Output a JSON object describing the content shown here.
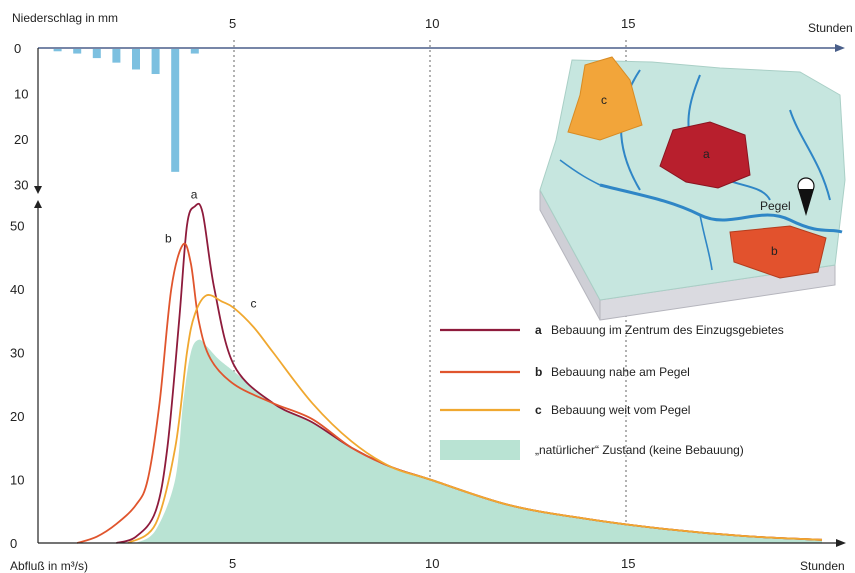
{
  "chart_data": {
    "type": "area",
    "top_axis": {
      "label": "Niederschlag in mm",
      "unit_label": "Stunden",
      "ticks": [
        0,
        10,
        20,
        30
      ],
      "x_ticks": [
        5,
        10,
        15
      ]
    },
    "precipitation": {
      "x": [
        0.5,
        1.0,
        1.5,
        2.0,
        2.5,
        3.0,
        3.5,
        4.0
      ],
      "values": [
        0.5,
        1,
        2,
        3,
        4.5,
        5.5,
        27,
        1
      ]
    },
    "bottom_axis": {
      "ylabel": "Abfluß in m³/s)",
      "xlabel": "Stunden",
      "y_ticks": [
        0,
        10,
        20,
        30,
        40,
        50
      ],
      "x_ticks": [
        5,
        10,
        15
      ],
      "xlim": [
        0,
        20
      ],
      "ylim": [
        0,
        56
      ]
    },
    "series": [
      {
        "key": "a",
        "name": "Bebauung im Zentrum des Einzugsgebietes",
        "color": "#8e1b3c",
        "x": [
          2.0,
          2.5,
          3.0,
          3.3,
          3.6,
          3.8,
          4.0,
          4.2,
          4.5,
          5.0,
          6.0,
          7.0,
          8.0,
          9.0,
          10.0,
          12.0,
          14.0,
          16.0,
          18.0,
          20.0
        ],
        "y": [
          0,
          1,
          5,
          15,
          35,
          50,
          53,
          52,
          40,
          28,
          22,
          19,
          15,
          12,
          10,
          6,
          3.8,
          2.2,
          1.1,
          0.5
        ]
      },
      {
        "key": "b",
        "name": "Bebauung nahe am Pegel",
        "color": "#e0552d",
        "x": [
          1.0,
          1.5,
          2.0,
          2.5,
          2.8,
          3.1,
          3.4,
          3.7,
          3.9,
          4.1,
          4.4,
          5.0,
          6.0,
          7.0,
          8.0,
          9.0,
          10.0,
          12.0,
          14.0,
          16.0,
          18.0,
          20.0
        ],
        "y": [
          0,
          1,
          3,
          6,
          10,
          22,
          40,
          47,
          44,
          35,
          29,
          25,
          22,
          19.5,
          15,
          12,
          10,
          6,
          3.8,
          2.2,
          1.1,
          0.5
        ]
      },
      {
        "key": "c",
        "name": "Bebauung weit vom Pegel",
        "color": "#f0a830",
        "x": [
          2.3,
          3.0,
          3.5,
          3.8,
          4.0,
          4.3,
          4.7,
          5.0,
          5.5,
          6.0,
          7.0,
          8.0,
          9.0,
          10.0,
          12.0,
          14.0,
          16.0,
          18.0,
          20.0
        ],
        "y": [
          0,
          3,
          15,
          30,
          36,
          39,
          38,
          37,
          34,
          30,
          22,
          16,
          12,
          10,
          6,
          3.8,
          2.2,
          1.1,
          0.5
        ]
      },
      {
        "key": "",
        "name": "„natürlicher“ Zustand (keine Bebauung)",
        "color": "#b9e3d3",
        "x": [
          2.5,
          3.0,
          3.5,
          3.7,
          3.9,
          4.1,
          4.3,
          4.6,
          5.0,
          6.0,
          7.0,
          8.0,
          9.0,
          10.0,
          12.0,
          14.0,
          16.0,
          18.0,
          20.0
        ],
        "y": [
          0,
          2,
          10,
          22,
          30,
          32,
          31,
          29,
          27,
          22,
          19,
          15,
          12,
          10,
          6,
          3.8,
          2.2,
          1.1,
          0.5
        ]
      }
    ],
    "map_labels": {
      "a": "a",
      "b": "b",
      "c": "c",
      "gauge": "Pegel"
    }
  }
}
